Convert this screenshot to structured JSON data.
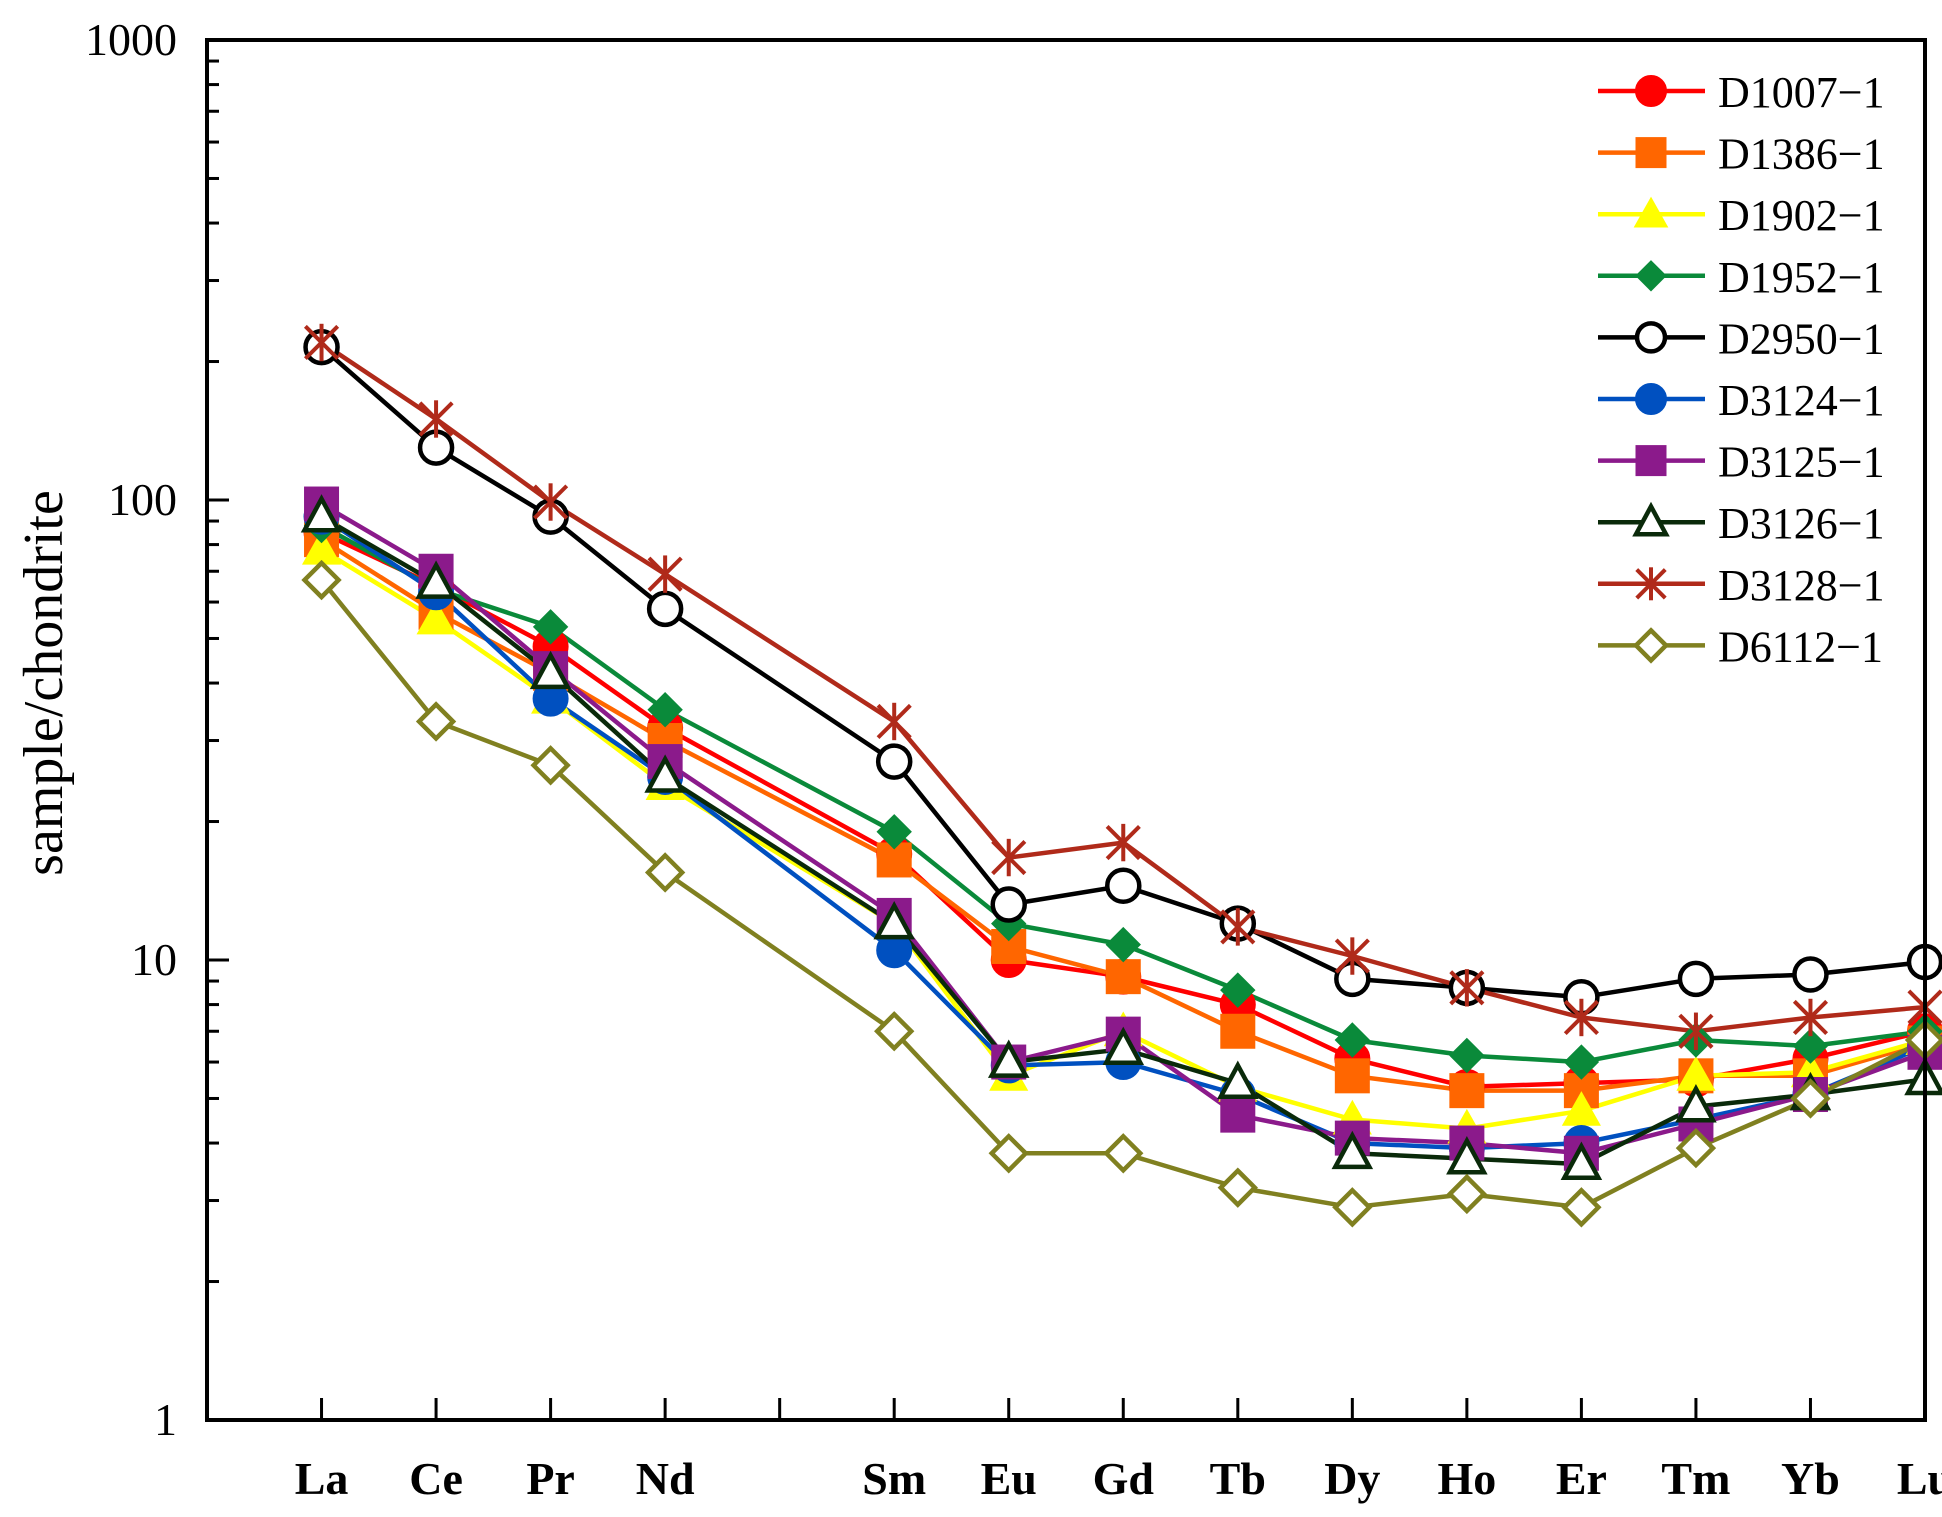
{
  "chart_data": {
    "type": "line",
    "ylabel": "sample/chondrite",
    "xlabel": "",
    "y_scale": "log",
    "ylim": [
      1,
      1000
    ],
    "y_ticks": [
      {
        "value": 1,
        "label": "1"
      },
      {
        "value": 10,
        "label": "10"
      },
      {
        "value": 100,
        "label": "100"
      },
      {
        "value": 1000,
        "label": "1000"
      }
    ],
    "categories": [
      "La",
      "Ce",
      "Pr",
      "Nd",
      "Sm",
      "Eu",
      "Gd",
      "Tb",
      "Dy",
      "Ho",
      "Er",
      "Tm",
      "Yb",
      "Lu"
    ],
    "x_tick_count": 15,
    "grid": false,
    "legend_position": "top-right",
    "series": [
      {
        "name": "D1007−1",
        "color": "#ff0000",
        "marker": "filled-circle",
        "values": [
          85,
          65,
          48,
          32,
          17,
          10,
          9.2,
          8,
          6.1,
          5.3,
          5.4,
          5.5,
          6.1,
          7
        ]
      },
      {
        "name": "D1386−1",
        "color": "#ff6600",
        "marker": "filled-square",
        "values": [
          82,
          57,
          42,
          30,
          16.5,
          10.7,
          9.2,
          7,
          5.6,
          5.2,
          5.2,
          5.6,
          5.6,
          6.6
        ]
      },
      {
        "name": "D1902−1",
        "color": "#ffff00",
        "marker": "filled-triangle",
        "values": [
          78,
          55,
          37,
          24,
          12,
          5.6,
          7,
          5.3,
          4.5,
          4.3,
          4.7,
          5.6,
          5.7,
          6.7
        ]
      },
      {
        "name": "D1952−1",
        "color": "#0a8a3a",
        "marker": "filled-diamond",
        "values": [
          88,
          64,
          53,
          35,
          19,
          12,
          10.8,
          8.6,
          6.7,
          6.2,
          6.0,
          6.7,
          6.5,
          7
        ]
      },
      {
        "name": "D2950−1",
        "color": "#000000",
        "marker": "open-circle",
        "values": [
          215,
          130,
          92,
          58,
          27,
          13.2,
          14.5,
          12,
          9.1,
          8.7,
          8.3,
          9.1,
          9.3,
          9.9
        ]
      },
      {
        "name": "D3124−1",
        "color": "#0050c0",
        "marker": "filled-circle",
        "values": [
          92,
          63,
          37,
          25,
          10.5,
          5.9,
          6,
          5.1,
          4,
          3.9,
          4,
          4.5,
          5.1,
          6.5
        ]
      },
      {
        "name": "D3125−1",
        "color": "#8b1a8b",
        "marker": "filled-square",
        "values": [
          98,
          70,
          43,
          27,
          12.5,
          6,
          6.9,
          4.6,
          4.1,
          4,
          3.8,
          4.4,
          5.1,
          6.3
        ]
      },
      {
        "name": "D3126−1",
        "color": "#0a2a0a",
        "marker": "open-triangle",
        "values": [
          92,
          66,
          42,
          25,
          12,
          6,
          6.4,
          5.4,
          3.8,
          3.7,
          3.6,
          4.8,
          5.1,
          5.5
        ]
      },
      {
        "name": "D3128−1",
        "color": "#b02a1a",
        "marker": "asterisk",
        "values": [
          220,
          150,
          99,
          69,
          33,
          16.7,
          18,
          11.8,
          10.2,
          8.7,
          7.5,
          7,
          7.5,
          7.9
        ]
      },
      {
        "name": "D6112−1",
        "color": "#808020",
        "marker": "open-diamond",
        "values": [
          67,
          33,
          26.5,
          15.5,
          7,
          3.8,
          3.8,
          3.2,
          2.9,
          3.1,
          2.9,
          3.9,
          5,
          6.7
        ]
      }
    ]
  }
}
